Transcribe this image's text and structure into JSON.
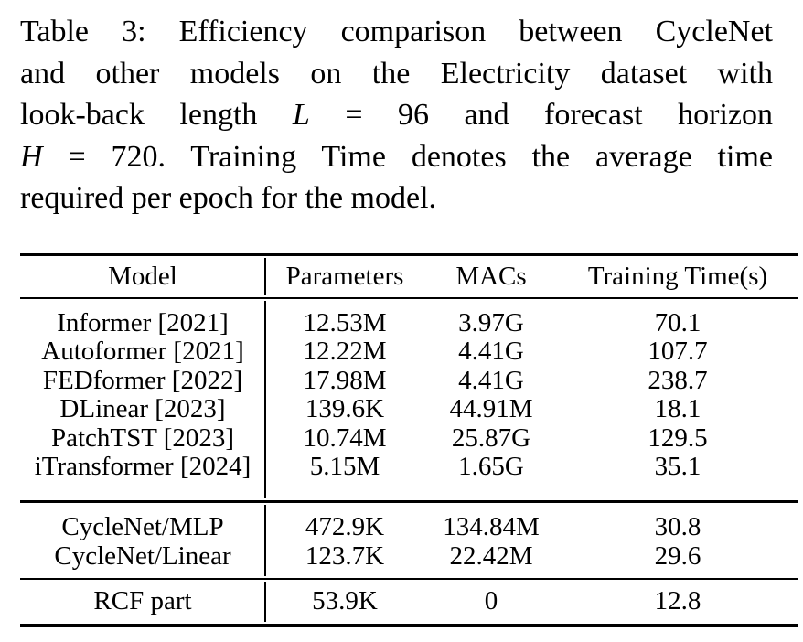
{
  "colors": {
    "background": "#ffffff",
    "text": "#000000",
    "rule": "#000000"
  },
  "caption": {
    "lines": [
      {
        "segments": [
          {
            "text": "Table 3: Efficiency comparison between CycleNet",
            "italic": false
          }
        ]
      },
      {
        "segments": [
          {
            "text": "and other models on the Electricity dataset with",
            "italic": false
          }
        ]
      },
      {
        "segments": [
          {
            "text": "look-back length ",
            "italic": false
          },
          {
            "text": "L",
            "italic": true
          },
          {
            "text": " = 96 and forecast horizon",
            "italic": false
          }
        ]
      },
      {
        "segments": [
          {
            "text": "H",
            "italic": true
          },
          {
            "text": " = 720. Training Time denotes the average time",
            "italic": false
          }
        ]
      },
      {
        "segments": [
          {
            "text": "required per epoch for the model.",
            "italic": false
          }
        ]
      }
    ]
  },
  "table": {
    "headers": [
      "Model",
      "Parameters",
      "MACs",
      "Training Time(s)"
    ],
    "groups": [
      {
        "rows": [
          {
            "cells": [
              "Informer [2021]",
              "12.53M",
              "3.97G",
              "70.1"
            ]
          },
          {
            "cells": [
              "Autoformer [2021]",
              "12.22M",
              "4.41G",
              "107.7"
            ]
          },
          {
            "cells": [
              "FEDformer [2022]",
              "17.98M",
              "4.41G",
              "238.7"
            ]
          },
          {
            "cells": [
              "DLinear [2023]",
              "139.6K",
              "44.91M",
              "18.1"
            ]
          },
          {
            "cells": [
              "PatchTST [2023]",
              "10.74M",
              "25.87G",
              "129.5"
            ]
          },
          {
            "cells": [
              "iTransformer [2024]",
              "5.15M",
              "1.65G",
              "35.1"
            ]
          }
        ]
      },
      {
        "rows": [
          {
            "cells": [
              "CycleNet/MLP",
              "472.9K",
              "134.84M",
              "30.8"
            ]
          },
          {
            "cells": [
              "CycleNet/Linear",
              "123.7K",
              "22.42M",
              "29.6"
            ]
          }
        ]
      },
      {
        "rows": [
          {
            "cells": [
              "RCF part",
              "53.9K",
              "0",
              "12.8"
            ]
          }
        ]
      }
    ]
  }
}
